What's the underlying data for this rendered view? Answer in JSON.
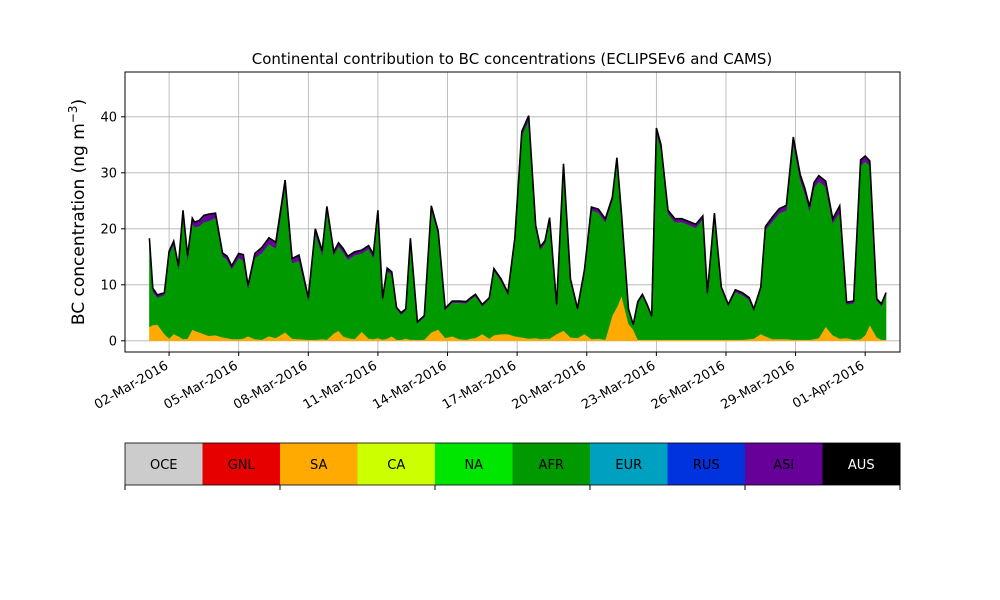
{
  "chart_data": {
    "type": "area",
    "stacked": true,
    "title": "Continental contribution to BC concentrations (ECLIPSEv6 and CAMS)",
    "ylabel_text": "BC concentration (ng m",
    "ylabel_sup": "−3",
    "ylabel_close": ")",
    "ylim": [
      -2,
      48
    ],
    "yticks": [
      0,
      10,
      20,
      30,
      40
    ],
    "xlim_days": [
      -1.9,
      31.5
    ],
    "xtick_days": [
      0,
      3,
      6,
      9,
      12,
      15,
      18,
      21,
      24,
      27,
      30
    ],
    "xtick_labels": [
      "02-Mar-2016",
      "05-Mar-2016",
      "08-Mar-2016",
      "11-Mar-2016",
      "14-Mar-2016",
      "17-Mar-2016",
      "20-Mar-2016",
      "23-Mar-2016",
      "26-Mar-2016",
      "29-Mar-2016",
      "01-Apr-2016"
    ],
    "grid": true,
    "legend": {
      "placement": "bottom colorbar",
      "entries": [
        {
          "label": "OCE",
          "color": "#cccccc"
        },
        {
          "label": "GNL",
          "color": "#e60000"
        },
        {
          "label": "SA",
          "color": "#ffaa00"
        },
        {
          "label": "CA",
          "color": "#ccff00"
        },
        {
          "label": "NA",
          "color": "#00e600"
        },
        {
          "label": "AFR",
          "color": "#009900"
        },
        {
          "label": "EUR",
          "color": "#00a0c0"
        },
        {
          "label": "RUS",
          "color": "#0033dd"
        },
        {
          "label": "ASI",
          "color": "#660099"
        },
        {
          "label": "AUS",
          "color": "#000000"
        }
      ]
    },
    "x_days": [
      -0.85,
      -0.7,
      -0.5,
      -0.2,
      0,
      0.2,
      0.4,
      0.6,
      0.8,
      1.0,
      1.1,
      1.3,
      1.5,
      1.7,
      2.0,
      2.3,
      2.5,
      2.7,
      3.0,
      3.2,
      3.4,
      3.7,
      4.0,
      4.3,
      4.6,
      5.0,
      5.3,
      5.6,
      6.0,
      6.3,
      6.6,
      6.8,
      7.1,
      7.3,
      7.5,
      7.7,
      8.0,
      8.3,
      8.6,
      8.8,
      9.0,
      9.2,
      9.4,
      9.6,
      9.8,
      10.0,
      10.2,
      10.4,
      10.7,
      11.0,
      11.3,
      11.6,
      11.9,
      12.2,
      12.5,
      12.8,
      13.0,
      13.2,
      13.5,
      13.8,
      14.0,
      14.3,
      14.6,
      14.9,
      15.2,
      15.5,
      15.8,
      16.0,
      16.2,
      16.4,
      16.7,
      17.0,
      17.3,
      17.6,
      17.9,
      18.2,
      18.5,
      18.8,
      19.1,
      19.3,
      19.5,
      19.8,
      20.0,
      20.2,
      20.4,
      20.6,
      20.8,
      21.0,
      21.2,
      21.5,
      21.8,
      22.1,
      22.4,
      22.7,
      23.0,
      23.2,
      23.5,
      23.8,
      24.1,
      24.4,
      24.7,
      25.0,
      25.2,
      25.5,
      25.7,
      26.0,
      26.3,
      26.6,
      26.9,
      27.2,
      27.4,
      27.6,
      27.8,
      28.0,
      28.3,
      28.6,
      28.9,
      29.2,
      29.5,
      29.8,
      30.0,
      30.2,
      30.5,
      30.7,
      30.9
    ],
    "series": [
      {
        "name": "SA",
        "color": "#ffaa00",
        "values": [
          2.5,
          2.8,
          2.9,
          1.2,
          0.4,
          1.2,
          0.8,
          0.3,
          0.4,
          2.0,
          1.8,
          1.5,
          1.2,
          0.9,
          1.0,
          0.6,
          0.5,
          0.3,
          0.3,
          0.4,
          0.8,
          0.3,
          0.2,
          0.8,
          0.5,
          1.5,
          0.4,
          0.3,
          0.2,
          0.2,
          0.3,
          0.2,
          1.3,
          1.8,
          0.8,
          0.5,
          0.3,
          1.6,
          0.4,
          0.3,
          0.5,
          0.2,
          0.4,
          0.8,
          0.2,
          0.2,
          0.4,
          0.2,
          0.2,
          0.2,
          1.5,
          2.0,
          0.5,
          0.8,
          0.3,
          0.2,
          0.4,
          0.5,
          1.2,
          0.4,
          1.0,
          1.2,
          1.2,
          0.8,
          0.6,
          0.4,
          0.5,
          0.3,
          0.4,
          0.4,
          1.2,
          1.8,
          0.6,
          0.5,
          1.2,
          0.3,
          0.4,
          0.2,
          4.5,
          6.0,
          8.0,
          3.0,
          2.0,
          0.2,
          0.2,
          0.2,
          0.2,
          0.2,
          0.2,
          0.2,
          0.2,
          0.2,
          0.2,
          0.2,
          0.2,
          0.2,
          0.2,
          0.2,
          0.2,
          0.2,
          0.2,
          0.3,
          0.4,
          1.2,
          0.8,
          0.3,
          0.3,
          0.3,
          0.2,
          0.2,
          0.2,
          0.2,
          0.3,
          0.5,
          2.5,
          1.0,
          0.4,
          0.5,
          0.2,
          0.3,
          1.0,
          2.8,
          0.6,
          0.2,
          0.2
        ]
      },
      {
        "name": "AFR",
        "color": "#009900",
        "values": [
          15.0,
          6.0,
          4.8,
          7.0,
          15.0,
          16.0,
          12.0,
          22.0,
          14.0,
          19.0,
          18.5,
          19.0,
          20.0,
          20.5,
          21.0,
          14.5,
          14.0,
          12.5,
          14.5,
          14.0,
          8.5,
          14.5,
          15.5,
          16.5,
          16.0,
          26.0,
          13.5,
          14.0,
          7.0,
          19.0,
          15.0,
          23.0,
          14.0,
          15.0,
          15.0,
          14.0,
          15.0,
          14.0,
          16.0,
          14.5,
          22.0,
          7.0,
          12.0,
          11.0,
          5.5,
          4.5,
          5.0,
          17.5,
          3.0,
          4.0,
          22.0,
          17.0,
          5.0,
          6.0,
          6.5,
          6.5,
          7.0,
          7.5,
          5.0,
          7.0,
          11.5,
          9.5,
          7.0,
          17.0,
          36.0,
          39.0,
          19.5,
          16.0,
          17.0,
          21.0,
          5.0,
          29.0,
          10.0,
          5.0,
          11.0,
          23.0,
          22.5,
          21.0,
          20.5,
          26.0,
          14.0,
          2.5,
          0.8,
          6.5,
          7.8,
          6.0,
          4.0,
          37.0,
          34.0,
          22.5,
          21.0,
          21.0,
          20.5,
          20.0,
          21.5,
          8.0,
          22.0,
          9.0,
          6.0,
          8.5,
          8.0,
          7.0,
          5.0,
          8.0,
          19.0,
          21.0,
          22.5,
          23.0,
          35.0,
          28.5,
          26.0,
          23.0,
          27.0,
          28.0,
          25.0,
          20.0,
          22.5,
          6.0,
          6.5,
          31.0,
          31.0,
          28.5,
          6.5,
          6.0,
          8.0
        ]
      },
      {
        "name": "ASI",
        "color": "#660099",
        "values": [
          0.8,
          0.6,
          0.5,
          0.4,
          0.6,
          0.6,
          0.6,
          1.0,
          0.8,
          0.9,
          0.9,
          1.0,
          1.2,
          1.2,
          0.8,
          0.6,
          0.6,
          0.6,
          0.8,
          1.0,
          0.6,
          0.8,
          1.0,
          1.1,
          1.1,
          1.2,
          0.8,
          1.0,
          0.5,
          0.8,
          0.8,
          0.8,
          0.6,
          0.7,
          0.7,
          0.6,
          0.6,
          0.6,
          0.6,
          0.7,
          0.8,
          0.4,
          0.6,
          0.5,
          0.3,
          0.3,
          0.3,
          0.6,
          0.2,
          0.3,
          0.6,
          0.6,
          0.3,
          0.3,
          0.3,
          0.3,
          0.3,
          0.3,
          0.3,
          0.3,
          0.4,
          0.4,
          0.4,
          0.5,
          0.8,
          0.8,
          0.6,
          0.5,
          0.5,
          0.6,
          0.3,
          0.8,
          0.4,
          0.3,
          0.4,
          0.6,
          0.6,
          0.6,
          0.6,
          0.7,
          0.5,
          0.2,
          0.1,
          0.3,
          0.3,
          0.3,
          0.2,
          0.8,
          0.8,
          0.6,
          0.6,
          0.6,
          0.6,
          0.6,
          0.6,
          0.4,
          0.6,
          0.4,
          0.3,
          0.4,
          0.4,
          0.4,
          0.3,
          0.4,
          0.6,
          0.8,
          0.8,
          0.9,
          1.2,
          1.0,
          1.0,
          0.8,
          1.0,
          1.0,
          1.0,
          0.8,
          1.2,
          0.4,
          0.4,
          1.0,
          1.0,
          0.8,
          0.4,
          0.4,
          0.4
        ]
      }
    ]
  }
}
